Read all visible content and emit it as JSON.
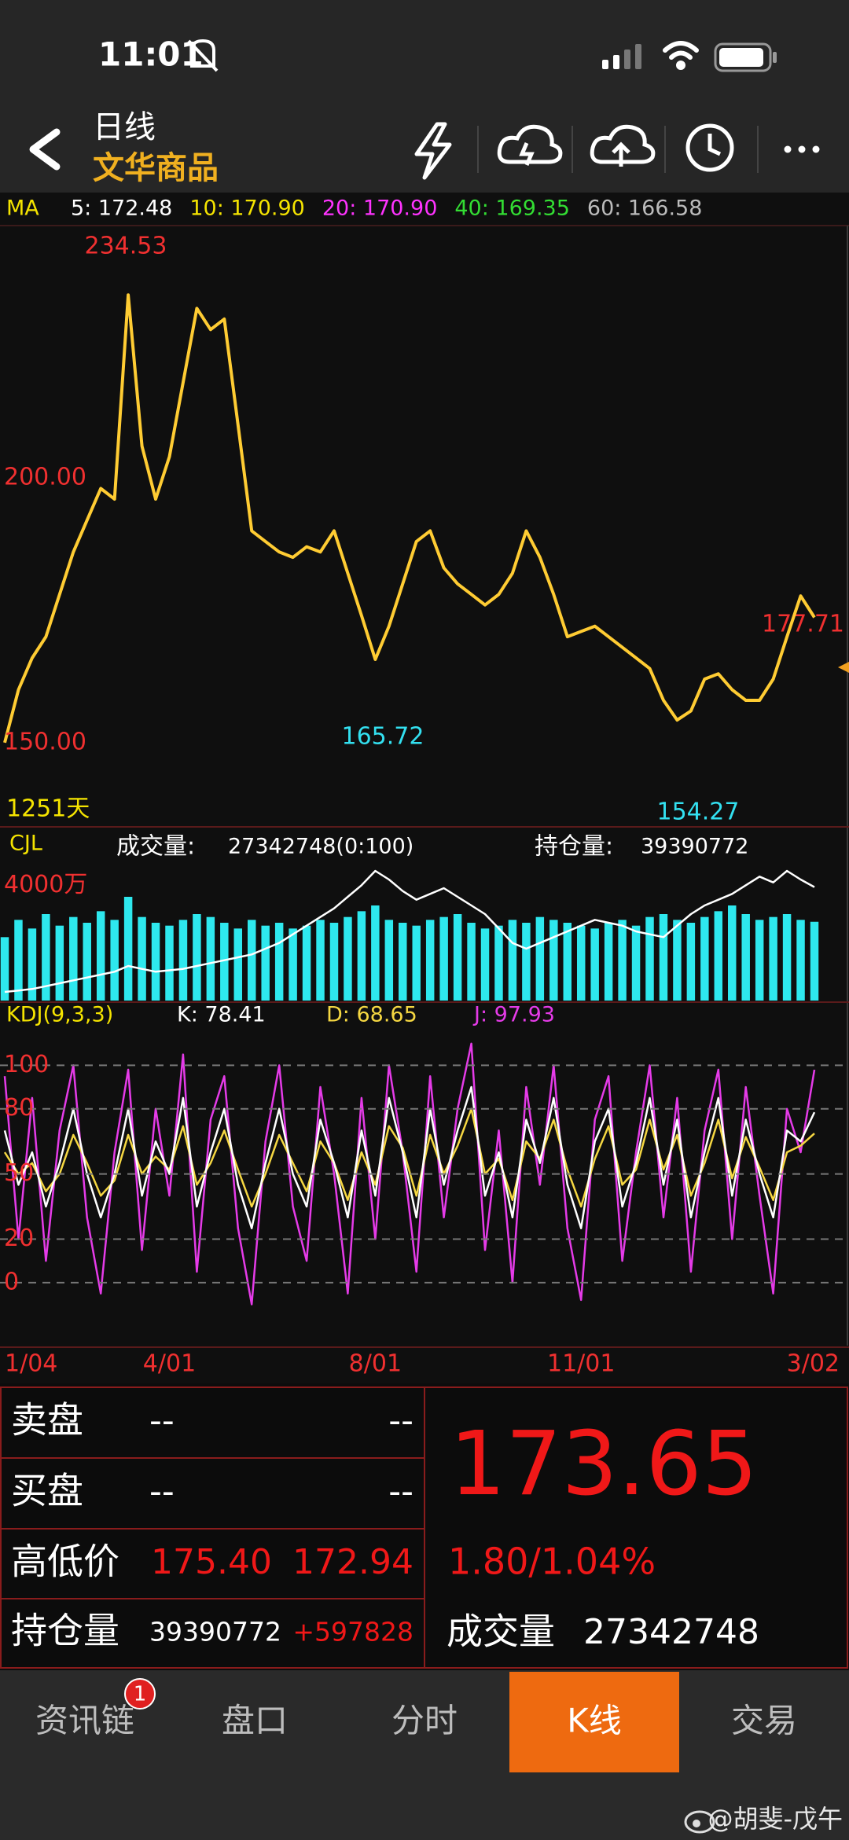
{
  "status": {
    "time": "11:01"
  },
  "header": {
    "title": "日线",
    "subtitle": "文华商品"
  },
  "chart_data": [
    {
      "type": "line",
      "title": "MA",
      "ma": [
        {
          "name": "5: 172.48",
          "color": "#ffffff"
        },
        {
          "name": "10: 170.90",
          "color": "#f5e400"
        },
        {
          "name": "20: 170.90",
          "color": "#ff33ff"
        },
        {
          "name": "40: 169.35",
          "color": "#33dd33"
        },
        {
          "name": "60: 166.58",
          "color": "#bbbbbb"
        }
      ],
      "values": [
        150,
        160,
        166,
        170,
        178,
        186,
        192,
        198,
        196,
        234.53,
        206,
        196,
        204,
        218,
        232,
        228,
        230,
        210,
        190,
        188,
        186,
        185,
        187,
        186,
        190,
        182,
        174,
        165.72,
        172,
        180,
        188,
        190,
        183,
        180,
        178,
        176,
        178,
        182,
        190,
        185,
        178,
        170,
        171,
        172,
        170,
        168,
        166,
        164,
        158,
        154.27,
        156,
        162,
        163,
        160,
        158,
        158,
        162,
        170,
        177.71,
        173.65
      ],
      "color": "#ffcc33",
      "ylim": [
        134.4,
        246.9
      ],
      "yticks": [
        {
          "value": 150,
          "label": "150.00"
        },
        {
          "value": 200,
          "label": "200.00"
        }
      ],
      "grid": false,
      "annotations": [
        "234.53",
        "165.72",
        "154.27",
        "177.71"
      ],
      "days": "1251天"
    },
    {
      "type": "bar",
      "title": "CJL",
      "series": [
        {
          "name": "成交量:",
          "label": "27342748(0:100)",
          "color": "#2ee8ee",
          "type": "bar",
          "values": [
            2200,
            2800,
            2500,
            3000,
            2600,
            2900,
            2700,
            3100,
            2800,
            3600,
            2900,
            2700,
            2600,
            2800,
            3000,
            2900,
            2700,
            2500,
            2800,
            2600,
            2700,
            2500,
            2600,
            2800,
            2700,
            2900,
            3100,
            3300,
            2800,
            2700,
            2600,
            2800,
            2900,
            3000,
            2700,
            2500,
            2600,
            2800,
            2700,
            2900,
            2800,
            2700,
            2600,
            2500,
            2700,
            2800,
            2600,
            2900,
            3000,
            2800,
            2700,
            2900,
            3100,
            3300,
            3000,
            2800,
            2900,
            3000,
            2800,
            2734
          ]
        },
        {
          "name": "持仓量:",
          "label": "39390772",
          "color": "#ffffff",
          "type": "line",
          "values": [
            300,
            350,
            400,
            500,
            600,
            700,
            800,
            900,
            1000,
            1200,
            1100,
            1000,
            1050,
            1100,
            1200,
            1300,
            1400,
            1500,
            1600,
            1800,
            2000,
            2300,
            2600,
            2900,
            3200,
            3600,
            4000,
            4500,
            4200,
            3800,
            3500,
            3700,
            3900,
            3600,
            3300,
            3000,
            2500,
            2000,
            1800,
            2000,
            2200,
            2400,
            2600,
            2800,
            2700,
            2600,
            2400,
            2300,
            2200,
            2600,
            3000,
            3300,
            3500,
            3700,
            4000,
            4300,
            4100,
            4500,
            4200,
            3939
          ]
        }
      ],
      "ylim": [
        0,
        6000
      ],
      "yticks": [
        {
          "value": 4000,
          "label": "4000万"
        }
      ],
      "grid": false
    },
    {
      "type": "line",
      "title": "KDJ(9,3,3)",
      "categories": [
        "1/04",
        null,
        null,
        null,
        null,
        null,
        null,
        null,
        null,
        null,
        null,
        null,
        "4/01",
        null,
        null,
        null,
        null,
        null,
        null,
        null,
        null,
        null,
        null,
        null,
        null,
        null,
        null,
        "8/01",
        null,
        null,
        null,
        null,
        null,
        null,
        null,
        null,
        null,
        null,
        null,
        null,
        null,
        null,
        "11/01",
        null,
        null,
        null,
        null,
        null,
        null,
        null,
        null,
        null,
        null,
        null,
        null,
        null,
        null,
        null,
        null,
        "3/02"
      ],
      "series": [
        {
          "name": "J: 97.93",
          "color": "#e53be8",
          "values": [
            95,
            20,
            85,
            10,
            70,
            100,
            30,
            -5,
            60,
            98,
            15,
            80,
            40,
            105,
            5,
            75,
            95,
            25,
            -10,
            65,
            100,
            35,
            10,
            90,
            50,
            -5,
            85,
            20,
            100,
            60,
            5,
            95,
            30,
            80,
            110,
            15,
            70,
            0,
            90,
            45,
            100,
            25,
            -8,
            75,
            95,
            10,
            60,
            100,
            30,
            85,
            5,
            70,
            98,
            20,
            90,
            40,
            -5,
            80,
            60,
            97.93
          ]
        },
        {
          "name": "D: 68.65",
          "color": "#f5d742",
          "values": [
            60,
            50,
            55,
            42,
            50,
            68,
            55,
            40,
            47,
            68,
            50,
            58,
            52,
            72,
            45,
            55,
            70,
            52,
            35,
            50,
            68,
            55,
            42,
            65,
            55,
            38,
            60,
            45,
            72,
            62,
            40,
            68,
            50,
            63,
            80,
            50,
            57,
            38,
            65,
            57,
            75,
            52,
            35,
            57,
            72,
            45,
            52,
            75,
            52,
            68,
            40,
            55,
            75,
            48,
            67,
            53,
            38,
            60,
            63,
            68.65
          ]
        },
        {
          "name": "K: 78.41",
          "color": "#ffffff",
          "values": [
            70,
            45,
            60,
            35,
            55,
            80,
            50,
            30,
            50,
            80,
            40,
            65,
            50,
            85,
            35,
            60,
            80,
            45,
            25,
            55,
            80,
            50,
            35,
            75,
            55,
            30,
            70,
            40,
            85,
            60,
            30,
            80,
            45,
            70,
            90,
            40,
            60,
            30,
            75,
            55,
            85,
            45,
            25,
            65,
            80,
            35,
            55,
            85,
            45,
            75,
            30,
            60,
            85,
            40,
            75,
            50,
            30,
            70,
            65,
            78.41
          ]
        }
      ],
      "ylim": [
        -29,
        128
      ],
      "yticks": [
        0,
        20,
        50,
        80,
        100
      ],
      "grid": true
    }
  ],
  "quote": {
    "rows": [
      {
        "label": "卖盘",
        "a": "--",
        "b": "--"
      },
      {
        "label": "买盘",
        "a": "--",
        "b": "--"
      },
      {
        "label": "高低价",
        "a": "175.40",
        "b": "172.94"
      },
      {
        "label": "持仓量",
        "a": "39390772",
        "b": "+597828"
      }
    ],
    "price": "173.65",
    "change": "1.80/1.04%",
    "volume_label": "成交量",
    "volume": "27342748"
  },
  "tabs": [
    {
      "label": "资讯链",
      "badge": "1"
    },
    {
      "label": "盘口"
    },
    {
      "label": "分时"
    },
    {
      "label": "K线"
    },
    {
      "label": "交易"
    }
  ],
  "watermark": "@胡斐-戊午"
}
